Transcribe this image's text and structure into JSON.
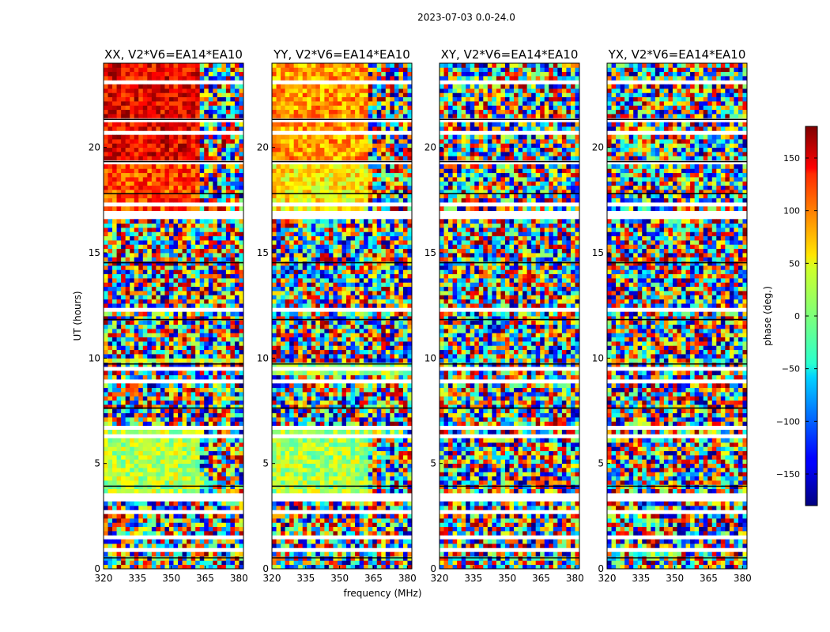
{
  "chart_data": {
    "type": "heatmap",
    "title": "2023-07-03 0.0-24.0",
    "xlabel": "frequency (MHz)",
    "ylabel": "UT (hours)",
    "xlim": [
      320,
      382
    ],
    "ylim": [
      0,
      24
    ],
    "x_ticks": [
      320,
      335,
      350,
      365,
      380
    ],
    "y_ticks": [
      0,
      5,
      10,
      15,
      20
    ],
    "colormap": "jet",
    "panels": [
      {
        "title": "XX, V2*V6=EA14*EA10",
        "regions": [
          {
            "ut": [
              0,
              3.6
            ],
            "freq": [
              320,
              382
            ],
            "phase_deg": "random"
          },
          {
            "ut": [
              3.6,
              6.8
            ],
            "freq": [
              320,
              363
            ],
            "phase_deg": 20
          },
          {
            "ut": [
              6.8,
              9.8
            ],
            "freq": [
              320,
              382
            ],
            "phase_deg": "random"
          },
          {
            "ut": [
              9.8,
              10
            ],
            "freq": [
              320,
              382
            ],
            "phase_deg": 30
          },
          {
            "ut": [
              10,
              17
            ],
            "freq": [
              320,
              382
            ],
            "phase_deg": "random"
          },
          {
            "ut": [
              17,
              19.3
            ],
            "freq": [
              320,
              363
            ],
            "phase_deg": 110
          },
          {
            "ut": [
              19.3,
              24
            ],
            "freq": [
              320,
              363
            ],
            "phase_deg": 140
          }
        ]
      },
      {
        "title": "YY, V2*V6=EA14*EA10",
        "regions": [
          {
            "ut": [
              0,
              3.6
            ],
            "freq": [
              320,
              382
            ],
            "phase_deg": "random"
          },
          {
            "ut": [
              3.6,
              6.8
            ],
            "freq": [
              320,
              363
            ],
            "phase_deg": 15
          },
          {
            "ut": [
              6.8,
              9.3
            ],
            "freq": [
              320,
              382
            ],
            "phase_deg": "random"
          },
          {
            "ut": [
              9.3,
              9.9
            ],
            "freq": [
              320,
              382
            ],
            "phase_deg": 10
          },
          {
            "ut": [
              9.9,
              17
            ],
            "freq": [
              320,
              382
            ],
            "phase_deg": "random"
          },
          {
            "ut": [
              17,
              19.3
            ],
            "freq": [
              320,
              363
            ],
            "phase_deg": 50
          },
          {
            "ut": [
              19.3,
              24
            ],
            "freq": [
              320,
              363
            ],
            "phase_deg": 80
          }
        ]
      },
      {
        "title": "XY, V2*V6=EA14*EA10",
        "regions": [
          {
            "ut": [
              0,
              24
            ],
            "freq": [
              320,
              382
            ],
            "phase_deg": "random"
          }
        ]
      },
      {
        "title": "YX, V2*V6=EA14*EA10",
        "regions": [
          {
            "ut": [
              0,
              24
            ],
            "freq": [
              320,
              382
            ],
            "phase_deg": "random"
          }
        ]
      }
    ],
    "colorbar": {
      "label": "phase (deg.)",
      "range": [
        -180,
        180
      ],
      "ticks": [
        150,
        100,
        50,
        0,
        -50,
        -100,
        -150
      ],
      "tick_labels": [
        "150",
        "100",
        "50",
        "0",
        "−50",
        "−100",
        "−150"
      ]
    }
  }
}
